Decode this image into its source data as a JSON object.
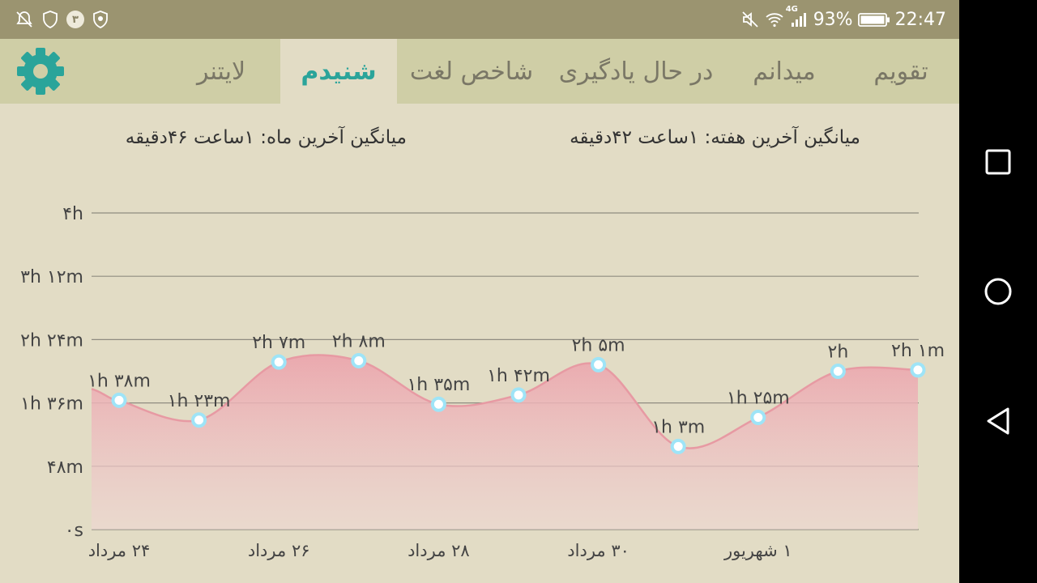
{
  "status_bar": {
    "notification_count": "۳",
    "signal_label": "4G",
    "battery_percent": "93%",
    "time": "22:47"
  },
  "tabs": [
    {
      "label": "تقویم"
    },
    {
      "label": "میدانم"
    },
    {
      "label": "در حال یادگیری"
    },
    {
      "label": "شاخص لغت"
    },
    {
      "label": "شنیدم"
    },
    {
      "label": "لایتنر"
    }
  ],
  "summary": {
    "last_week": "میانگین آخرین هفته: ۱ساعت  ۴۲دقیقه",
    "last_month": "میانگین آخرین ماه: ۱ساعت  ۴۶دقیقه"
  },
  "colors": {
    "accent": "#2aa49a",
    "area_fill": "#ecabb0",
    "point": "#9ee4f7"
  },
  "chart_data": {
    "type": "area",
    "y_unit": "minutes",
    "ylim": [
      0,
      240
    ],
    "y_ticks": [
      {
        "value": 0,
        "label": "۰s"
      },
      {
        "value": 48,
        "label": "۴۸m"
      },
      {
        "value": 96,
        "label": "۱h ۳۶m"
      },
      {
        "value": 144,
        "label": "۲h ۲۴m"
      },
      {
        "value": 192,
        "label": "۳h ۱۲m"
      },
      {
        "value": 240,
        "label": "۴h"
      }
    ],
    "x_tick_labels": [
      {
        "index": 0,
        "label": "۲۴ مرداد"
      },
      {
        "index": 2,
        "label": "۲۶ مرداد"
      },
      {
        "index": 4,
        "label": "۲۸ مرداد"
      },
      {
        "index": 6,
        "label": "۳۰ مرداد"
      },
      {
        "index": 8,
        "label": "۱ شهریور"
      }
    ],
    "points": [
      {
        "value": 98,
        "label": "۱h ۳۸m"
      },
      {
        "value": 83,
        "label": "۱h ۲۳m"
      },
      {
        "value": 127,
        "label": "۲h ۷m"
      },
      {
        "value": 128,
        "label": "۲h ۸m"
      },
      {
        "value": 95,
        "label": "۱h ۳۵m"
      },
      {
        "value": 102,
        "label": "۱h ۴۲m"
      },
      {
        "value": 125,
        "label": "۲h ۵m"
      },
      {
        "value": 63,
        "label": "۱h ۳m"
      },
      {
        "value": 85,
        "label": "۱h ۲۵m"
      },
      {
        "value": 120,
        "label": "۲h"
      },
      {
        "value": 121,
        "label": "۲h ۱m"
      }
    ],
    "grid": true
  }
}
